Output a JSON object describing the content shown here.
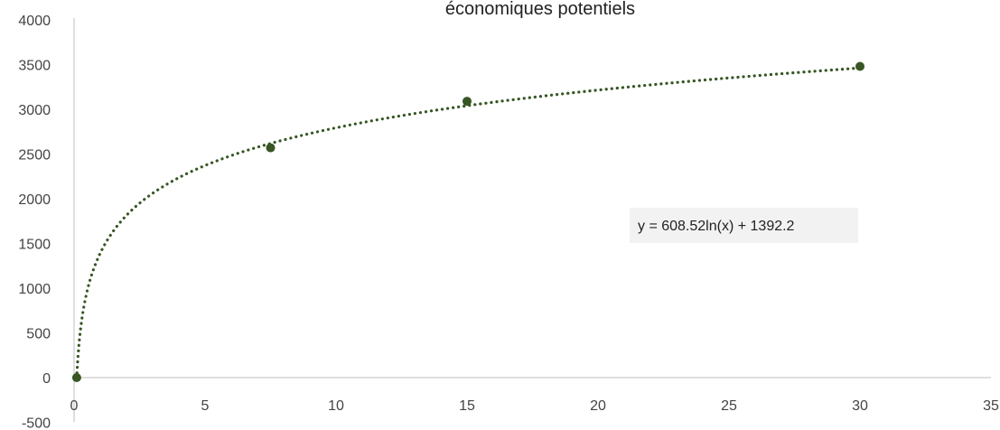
{
  "chart_data": {
    "type": "scatter",
    "title": "économiques potentiels",
    "xlabel": "",
    "ylabel": "",
    "xlim": [
      0,
      35
    ],
    "ylim": [
      -500,
      4000
    ],
    "x_ticks": [
      0,
      5,
      10,
      15,
      20,
      25,
      30,
      35
    ],
    "y_ticks": [
      -500,
      0,
      500,
      1000,
      1500,
      2000,
      2500,
      3000,
      3500,
      4000
    ],
    "grid": false,
    "legend": "none",
    "series": [
      {
        "x": [
          0.1,
          7.5,
          15,
          30
        ],
        "y": [
          0,
          2570,
          3090,
          3480
        ],
        "color": "#375623"
      }
    ],
    "trendline": {
      "type": "logarithmic",
      "a": 608.52,
      "b": 1392.2,
      "style": "dotted",
      "color": "#375623",
      "label": "y = 608.52ln(x) + 1392.2"
    }
  }
}
